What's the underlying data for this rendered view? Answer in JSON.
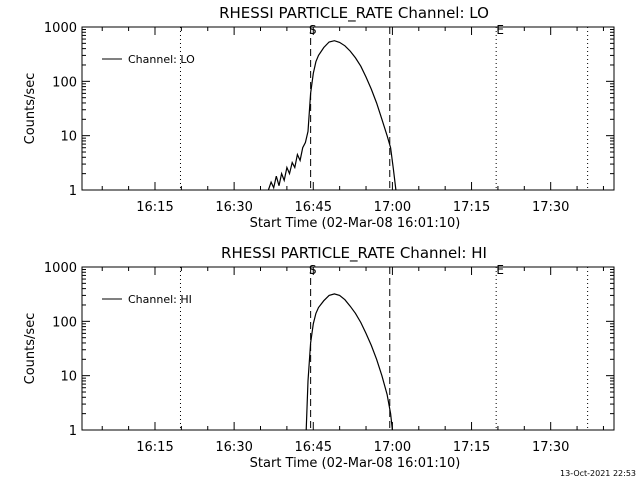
{
  "chart_data": [
    {
      "type": "line",
      "title": "RHESSI PARTICLE_RATE Channel: LO",
      "xlabel": "Start Time (02-Mar-08 16:01:10)",
      "ylabel": "Counts/sec",
      "yscale": "log",
      "ylim": [
        1,
        1000
      ],
      "xlim": [
        "16:01:10",
        "17:42:00"
      ],
      "x_ticks": [
        "16:15",
        "16:30",
        "16:45",
        "17:00",
        "17:15",
        "17:30"
      ],
      "y_ticks": [
        "1",
        "10",
        "100",
        "1000"
      ],
      "legend": {
        "entries": [
          "Channel: LO"
        ],
        "placement": "top-left"
      },
      "markers": {
        "start_label": "S",
        "end_label": "E"
      },
      "vlines_dashed": [
        "16:44:30",
        "16:59:30"
      ],
      "vlines_dotted": [
        "16:19:50",
        "17:19:40",
        "17:37:00"
      ],
      "series": [
        {
          "name": "Channel: LO",
          "x": [
            "16:36:30",
            "16:37:00",
            "16:37:30",
            "16:38:00",
            "16:38:30",
            "16:39:00",
            "16:39:30",
            "16:40:00",
            "16:40:30",
            "16:41:00",
            "16:41:30",
            "16:42:00",
            "16:42:30",
            "16:43:00",
            "16:43:30",
            "16:44:00",
            "16:44:30",
            "16:45:00",
            "16:45:30",
            "16:46:00",
            "16:47:00",
            "16:48:00",
            "16:49:00",
            "16:50:00",
            "16:51:00",
            "16:52:00",
            "16:53:00",
            "16:54:00",
            "16:55:00",
            "16:56:00",
            "16:57:00",
            "16:58:00",
            "16:59:00",
            "16:59:40",
            "17:00:10",
            "17:00:40"
          ],
          "y": [
            1,
            1.4,
            1.1,
            1.8,
            1.2,
            2.0,
            1.5,
            2.6,
            2.0,
            3.2,
            2.6,
            4.5,
            3.5,
            6.0,
            7.5,
            12,
            60,
            140,
            230,
            300,
            420,
            530,
            560,
            520,
            450,
            360,
            270,
            190,
            120,
            72,
            40,
            20,
            10,
            6,
            2.5,
            1
          ]
        }
      ]
    },
    {
      "type": "line",
      "title": "RHESSI PARTICLE_RATE Channel: HI",
      "xlabel": "Start Time (02-Mar-08 16:01:10)",
      "ylabel": "Counts/sec",
      "yscale": "log",
      "ylim": [
        1,
        1000
      ],
      "xlim": [
        "16:01:10",
        "17:42:00"
      ],
      "x_ticks": [
        "16:15",
        "16:30",
        "16:45",
        "17:00",
        "17:15",
        "17:30"
      ],
      "y_ticks": [
        "1",
        "10",
        "100",
        "1000"
      ],
      "legend": {
        "entries": [
          "Channel: HI"
        ],
        "placement": "top-left"
      },
      "markers": {
        "start_label": "S",
        "end_label": "E"
      },
      "vlines_dashed": [
        "16:44:30",
        "16:59:30"
      ],
      "vlines_dotted": [
        "16:19:50",
        "17:19:40",
        "17:37:00"
      ],
      "series": [
        {
          "name": "Channel: HI",
          "x": [
            "16:43:40",
            "16:44:00",
            "16:44:30",
            "16:45:00",
            "16:45:30",
            "16:46:00",
            "16:47:00",
            "16:48:00",
            "16:49:00",
            "16:50:00",
            "16:51:00",
            "16:52:00",
            "16:53:00",
            "16:54:00",
            "16:55:00",
            "16:56:00",
            "16:57:00",
            "16:58:00",
            "16:59:00",
            "16:59:40",
            "17:00:00"
          ],
          "y": [
            1,
            8,
            40,
            90,
            140,
            180,
            240,
            300,
            320,
            300,
            250,
            190,
            140,
            95,
            60,
            36,
            20,
            10,
            4.5,
            2,
            1
          ]
        }
      ]
    }
  ],
  "footer": {
    "timestamp": "13-Oct-2021 22:53"
  },
  "colors": {
    "line": "#000000",
    "background": "#ffffff"
  }
}
